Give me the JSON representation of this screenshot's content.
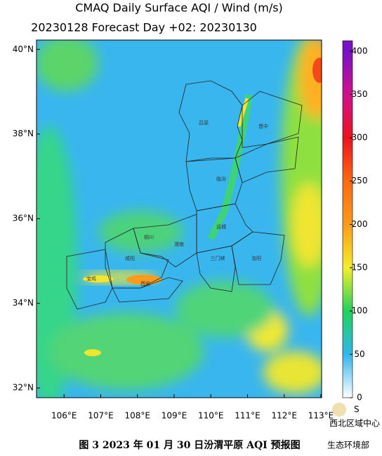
{
  "header": {
    "title": "CMAQ Daily Surface AQI / Wind (m/s)",
    "subtitle": "20230128 Forecast Day +02:  20230130"
  },
  "map": {
    "xlim": [
      105.25,
      113.02
    ],
    "ylim": [
      31.77,
      40.22
    ],
    "xticks": [
      {
        "value": 106,
        "label": "106°E"
      },
      {
        "value": 107,
        "label": "107°E"
      },
      {
        "value": 108,
        "label": "108°E"
      },
      {
        "value": 109,
        "label": "109°E"
      },
      {
        "value": 110,
        "label": "110°E"
      },
      {
        "value": 111,
        "label": "111°E"
      },
      {
        "value": 112,
        "label": "112°E"
      },
      {
        "value": 113,
        "label": "113°E"
      }
    ],
    "yticks": [
      {
        "value": 32,
        "label": "32°N"
      },
      {
        "value": 34,
        "label": "34°N"
      },
      {
        "value": 36,
        "label": "36°N"
      },
      {
        "value": 38,
        "label": "38°N"
      },
      {
        "value": 40,
        "label": "40°N"
      }
    ],
    "cities": [
      "吕梁",
      "晋中",
      "临汾",
      "运城",
      "铜川",
      "渭南",
      "咸阳",
      "三门峡",
      "洛阳",
      "宝鸡",
      "西安"
    ]
  },
  "colorbar": {
    "lim": [
      0,
      412
    ],
    "ticks": [
      0,
      50,
      100,
      150,
      200,
      250,
      300,
      350,
      400
    ],
    "colors": [
      "#ffffff",
      "#31b6f0",
      "#1fd35a",
      "#f5ee2a",
      "#ff9a1a",
      "#ff6a10",
      "#f0101a",
      "#d01090",
      "#7a10c8"
    ]
  },
  "logo": "西北区域中心",
  "watermark": "生态环境部",
  "caption": "图 3 2023 年 01 月 30 日汾渭平原 AQI 预报图"
}
